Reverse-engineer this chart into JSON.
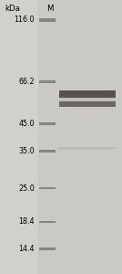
{
  "gel_bg_color": "#cbc9c3",
  "left_bg_color": "#d2d0ca",
  "title_label": "kDa",
  "marker_label": "M",
  "mw_labels": [
    "116.0",
    "66.2",
    "45.0",
    "35.0",
    "25.0",
    "18.4",
    "14.4"
  ],
  "mw_values": [
    116.0,
    66.2,
    45.0,
    35.0,
    25.0,
    18.4,
    14.4
  ],
  "band_color": "#888480",
  "sample_band_color_1": "#555250",
  "sample_band_color_2": "#6a6764",
  "faint_band_color": "#b0aeaa",
  "label_fontsize": 5.8,
  "header_fontsize": 6.2,
  "fig_width": 1.34,
  "fig_height": 3.0,
  "dpi": 100
}
